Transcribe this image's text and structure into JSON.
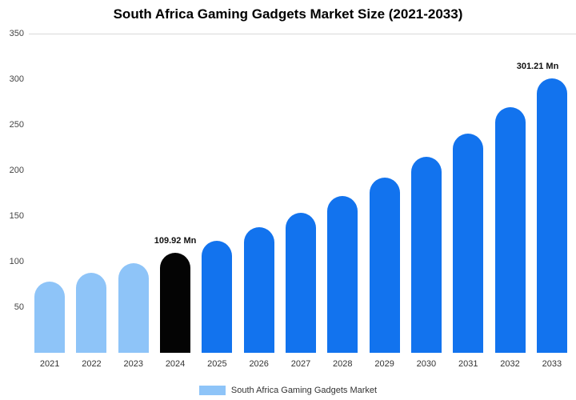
{
  "chart_data": {
    "type": "bar",
    "title": "South Africa Gaming Gadgets Market Size (2021-2033)",
    "categories": [
      "2021",
      "2022",
      "2023",
      "2024",
      "2025",
      "2026",
      "2027",
      "2028",
      "2029",
      "2030",
      "2031",
      "2032",
      "2033"
    ],
    "values": [
      78.5,
      87.8,
      98.3,
      109.92,
      122.9,
      137.5,
      153.8,
      172.0,
      192.4,
      215.2,
      240.7,
      269.2,
      301.21
    ],
    "unit": "Mn",
    "ylim": [
      0,
      350
    ],
    "yticks": [
      50,
      100,
      150,
      200,
      250,
      300,
      350
    ],
    "bar_colors": [
      "#8EC4F8",
      "#8EC4F8",
      "#8EC4F8",
      "#040404",
      "#1273EE",
      "#1273EE",
      "#1273EE",
      "#1273EE",
      "#1273EE",
      "#1273EE",
      "#1273EE",
      "#1273EE",
      "#1273EE"
    ],
    "annotations": [
      {
        "index": 3,
        "text": "109.92 Mn"
      },
      {
        "index": 12,
        "text": "301.21 Mn"
      }
    ],
    "legend": {
      "label": "South Africa Gaming Gadgets Market",
      "swatch_color": "#8EC4F8"
    },
    "gridline_color": "#d9d9d9"
  }
}
